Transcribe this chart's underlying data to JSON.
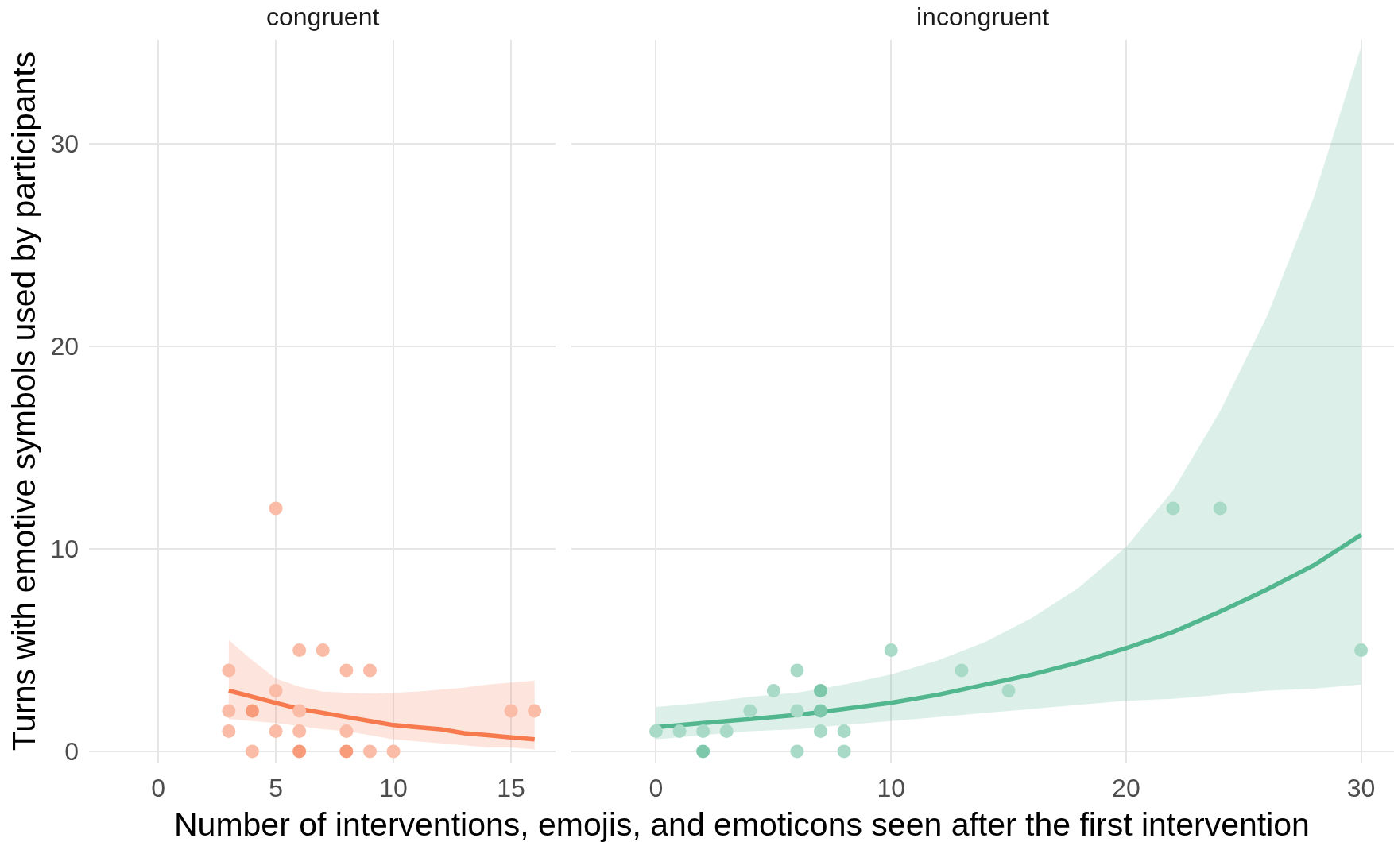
{
  "chart_data": [
    {
      "type": "scatter",
      "title": "congruent",
      "xlabel": "Number of interventions, emojis, and emoticons seen after the first intervention",
      "ylabel": "Turns with emotive symbols used by participants",
      "xlim": [
        -2.94,
        16.89
      ],
      "xticks": [
        0,
        5,
        10,
        15
      ],
      "ylim": [
        -0.55,
        35.15
      ],
      "yticks": [
        0,
        10,
        20,
        30
      ],
      "grid": true,
      "series": [
        {
          "marker": "circle",
          "x": [
            5,
            6,
            7,
            3,
            8,
            9,
            5,
            3,
            4,
            6,
            15,
            16,
            3,
            5,
            6,
            8,
            4,
            6,
            8,
            9,
            10
          ],
          "values": [
            12,
            5,
            5,
            4,
            4,
            4,
            3,
            2,
            2,
            2,
            2,
            2,
            1,
            1,
            1,
            1,
            0,
            0,
            0,
            0,
            0
          ],
          "colors": [
            "#fabca6",
            "#fabca6",
            "#fabca6",
            "#fabca6",
            "#fabca6",
            "#fabca6",
            "#fabca6",
            "#fabca6",
            "#f89b7a",
            "#fabca6",
            "#fabca6",
            "#fabca6",
            "#fabca6",
            "#fabca6",
            "#fabca6",
            "#fabca6",
            "#fabca6",
            "#f89b7a",
            "#f89b7a",
            "#fabca6",
            "#fabca6"
          ]
        },
        {
          "type": "line",
          "color": "#f67a4e",
          "x": [
            3,
            4,
            5,
            6,
            7,
            8,
            9,
            10,
            11,
            12,
            13,
            14,
            15,
            16
          ],
          "values": [
            3.0,
            2.7,
            2.4,
            2.1,
            1.9,
            1.7,
            1.5,
            1.3,
            1.2,
            1.1,
            0.9,
            0.8,
            0.7,
            0.6
          ],
          "lower": [
            1.6,
            1.5,
            1.4,
            1.25,
            1.1,
            1.0,
            0.8,
            0.6,
            0.5,
            0.4,
            0.3,
            0.2,
            0.2,
            0.1
          ],
          "upper": [
            5.5,
            4.5,
            3.6,
            3.2,
            2.95,
            2.9,
            2.85,
            2.9,
            2.95,
            3.05,
            3.15,
            3.3,
            3.4,
            3.5
          ]
        }
      ]
    },
    {
      "type": "scatter",
      "title": "incongruent",
      "xlim": [
        -3.6,
        31.4
      ],
      "xticks": [
        0,
        10,
        20,
        30
      ],
      "ylim": [
        -0.55,
        35.15
      ],
      "yticks": [
        0,
        10,
        20,
        30
      ],
      "grid": true,
      "tick_labels": "x",
      "series": [
        {
          "marker": "circle",
          "x": [
            22,
            24,
            10,
            30,
            6,
            13,
            5,
            7,
            15,
            4,
            6,
            7,
            0,
            1,
            2,
            3,
            7,
            8,
            2,
            6,
            8
          ],
          "values": [
            12,
            12,
            5,
            5,
            4,
            4,
            3,
            3,
            3,
            2,
            2,
            2,
            1,
            1,
            1,
            1,
            1,
            1,
            0,
            0,
            0
          ],
          "colors": [
            "#a8dac7",
            "#a8dac7",
            "#a8dac7",
            "#a8dac7",
            "#a8dac7",
            "#a8dac7",
            "#a8dac7",
            "#7dc8ab",
            "#a8dac7",
            "#a8dac7",
            "#a8dac7",
            "#7dc8ab",
            "#a8dac7",
            "#a8dac7",
            "#a8dac7",
            "#a8dac7",
            "#a8dac7",
            "#a8dac7",
            "#7dc8ab",
            "#a8dac7",
            "#a8dac7"
          ]
        },
        {
          "type": "line",
          "color": "#52b68f",
          "x": [
            0,
            2,
            4,
            6,
            8,
            10,
            12,
            14,
            16,
            18,
            20,
            22,
            24,
            26,
            28,
            30
          ],
          "values": [
            1.2,
            1.4,
            1.6,
            1.8,
            2.1,
            2.4,
            2.8,
            3.3,
            3.8,
            4.4,
            5.1,
            5.9,
            6.9,
            8.0,
            9.2,
            10.7
          ],
          "lower": [
            0.6,
            0.8,
            1.0,
            1.1,
            1.3,
            1.5,
            1.7,
            1.9,
            2.1,
            2.3,
            2.5,
            2.6,
            2.8,
            3.0,
            3.1,
            3.3
          ],
          "upper": [
            2.2,
            2.4,
            2.7,
            2.9,
            3.3,
            3.8,
            4.5,
            5.4,
            6.6,
            8.1,
            10.1,
            12.9,
            16.8,
            21.5,
            27.4,
            34.8
          ]
        }
      ]
    }
  ]
}
